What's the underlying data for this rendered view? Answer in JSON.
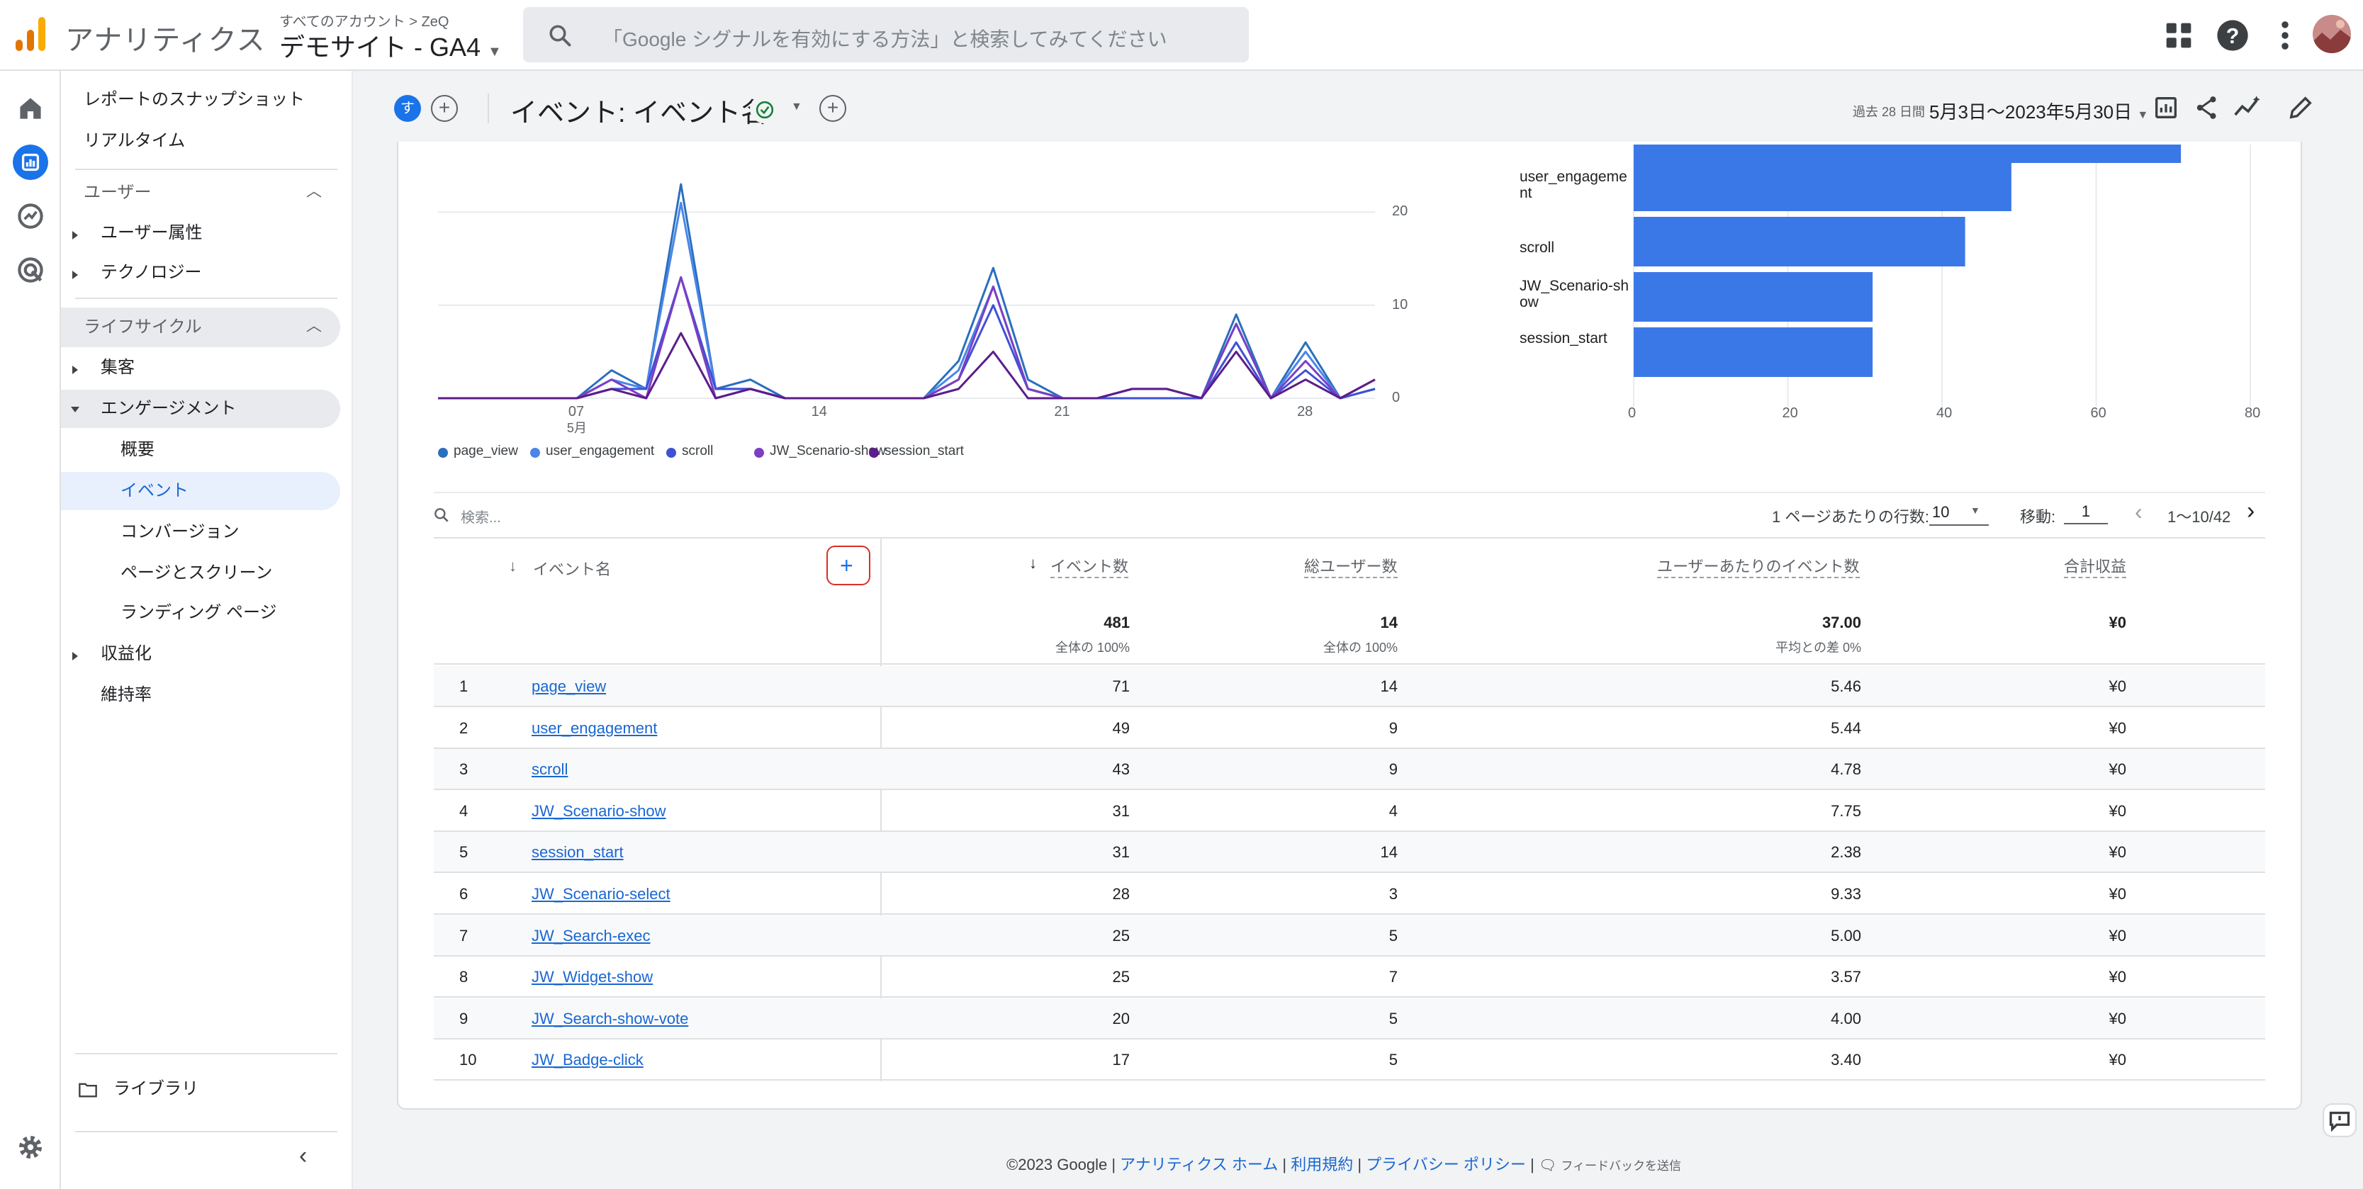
{
  "topbar": {
    "app_name": "アナリティクス",
    "breadcrumb": "すべてのアカウント > ZeQ",
    "property": "デモサイト - GA4",
    "search_placeholder": "「Google シグナルを有効にする方法」と検索してみてください"
  },
  "nav": {
    "snapshot": "レポートのスナップショット",
    "realtime": "リアルタイム",
    "user_section": "ユーザー",
    "user_attr": "ユーザー属性",
    "technology": "テクノロジー",
    "lifecycle_section": "ライフサイクル",
    "acquisition": "集客",
    "engagement": "エンゲージメント",
    "overview": "概要",
    "events": "イベント",
    "conversions": "コンバージョン",
    "pages": "ページとスクリーン",
    "landing": "ランディング ページ",
    "monetization": "収益化",
    "retention": "維持率",
    "library": "ライブラリ"
  },
  "header": {
    "avatar_letter": "す",
    "title": "イベント: イベント名",
    "date_label": "過去 28 日間",
    "date_range": "5月3日〜2023年5月30日"
  },
  "line_chart": {
    "x_ticks": [
      {
        "label": "07",
        "sub": "5月"
      },
      {
        "label": "14",
        "sub": ""
      },
      {
        "label": "21",
        "sub": ""
      },
      {
        "label": "28",
        "sub": ""
      }
    ],
    "y_ticks": [
      "20",
      "10",
      "0"
    ],
    "legend": [
      {
        "name": "page_view",
        "color": "#2a6fbd"
      },
      {
        "name": "user_engagement",
        "color": "#4a86e8"
      },
      {
        "name": "scroll",
        "color": "#3f51d6"
      },
      {
        "name": "JW_Scenario-show",
        "color": "#7b3fc4"
      },
      {
        "name": "session_start",
        "color": "#5c1d8a"
      }
    ]
  },
  "chart_data": [
    {
      "type": "line",
      "ylim": [
        0,
        23
      ],
      "x": [
        "5月3日",
        "5月4日",
        "5月5日",
        "5月6日",
        "5月7日",
        "5月8日",
        "5月9日",
        "5月10日",
        "5月11日",
        "5月12日",
        "5月13日",
        "5月14日",
        "5月15日",
        "5月16日",
        "5月17日",
        "5月18日",
        "5月19日",
        "5月20日",
        "5月21日",
        "5月22日",
        "5月23日",
        "5月24日",
        "5月25日",
        "5月26日",
        "5月27日",
        "5月28日",
        "5月29日",
        "5月30日"
      ],
      "series": [
        {
          "name": "page_view",
          "values": [
            0,
            0,
            0,
            0,
            0,
            3,
            1,
            23,
            1,
            2,
            0,
            0,
            0,
            0,
            0,
            4,
            14,
            2,
            0,
            0,
            0,
            0,
            0,
            9,
            0,
            6,
            0,
            1
          ]
        },
        {
          "name": "user_engagement",
          "values": [
            0,
            0,
            0,
            0,
            0,
            2,
            1,
            21,
            1,
            1,
            0,
            0,
            0,
            0,
            0,
            3,
            12,
            1,
            0,
            0,
            0,
            0,
            0,
            8,
            0,
            5,
            0,
            1
          ]
        },
        {
          "name": "scroll",
          "values": [
            0,
            0,
            0,
            0,
            0,
            1,
            1,
            13,
            1,
            1,
            0,
            0,
            0,
            0,
            0,
            2,
            10,
            1,
            0,
            0,
            0,
            0,
            0,
            6,
            0,
            3,
            0,
            1
          ]
        },
        {
          "name": "JW_Scenario-show",
          "values": [
            0,
            0,
            0,
            0,
            0,
            2,
            0,
            13,
            0,
            1,
            0,
            0,
            0,
            0,
            0,
            2,
            12,
            1,
            0,
            0,
            1,
            1,
            0,
            8,
            0,
            4,
            0,
            2
          ]
        },
        {
          "name": "session_start",
          "values": [
            0,
            0,
            0,
            0,
            0,
            1,
            0,
            7,
            0,
            1,
            0,
            0,
            0,
            0,
            0,
            1,
            5,
            0,
            0,
            0,
            1,
            1,
            0,
            5,
            0,
            2,
            0,
            2
          ]
        }
      ]
    },
    {
      "type": "bar",
      "categories": [
        "page_view",
        "user_engagement",
        "scroll",
        "JW_Scenario-show",
        "session_start"
      ],
      "values": [
        71,
        49,
        43,
        31,
        31
      ],
      "xlim": [
        0,
        80
      ],
      "x_ticks": [
        "0",
        "20",
        "40",
        "60",
        "80"
      ]
    }
  ],
  "bar_labels": [
    {
      "line1": "user_engageme",
      "line2": "nt"
    },
    {
      "line1": "scroll",
      "line2": ""
    },
    {
      "line1": "JW_Scenario-sh",
      "line2": "ow"
    },
    {
      "line1": "session_start",
      "line2": ""
    }
  ],
  "table_controls": {
    "search_placeholder": "検索...",
    "rows_per_page_label": "1 ページあたりの行数:",
    "rows_per_page": "10",
    "goto_label": "移動:",
    "goto_value": "1",
    "page_info": "1〜10/42"
  },
  "table": {
    "headers": {
      "name": "イベント名",
      "count": "イベント数",
      "users": "総ユーザー数",
      "per_user": "ユーザーあたりのイベント数",
      "revenue": "合計収益"
    },
    "totals": {
      "count": "481",
      "count_sub": "全体の 100%",
      "users": "14",
      "users_sub": "全体の 100%",
      "per_user": "37.00",
      "per_user_sub": "平均との差 0%",
      "revenue": "¥0"
    },
    "rows": [
      {
        "idx": "1",
        "name": "page_view",
        "count": "71",
        "users": "14",
        "per_user": "5.46",
        "revenue": "¥0"
      },
      {
        "idx": "2",
        "name": "user_engagement",
        "count": "49",
        "users": "9",
        "per_user": "5.44",
        "revenue": "¥0"
      },
      {
        "idx": "3",
        "name": "scroll",
        "count": "43",
        "users": "9",
        "per_user": "4.78",
        "revenue": "¥0"
      },
      {
        "idx": "4",
        "name": "JW_Scenario-show",
        "count": "31",
        "users": "4",
        "per_user": "7.75",
        "revenue": "¥0"
      },
      {
        "idx": "5",
        "name": "session_start",
        "count": "31",
        "users": "14",
        "per_user": "2.38",
        "revenue": "¥0"
      },
      {
        "idx": "6",
        "name": "JW_Scenario-select",
        "count": "28",
        "users": "3",
        "per_user": "9.33",
        "revenue": "¥0"
      },
      {
        "idx": "7",
        "name": "JW_Search-exec",
        "count": "25",
        "users": "5",
        "per_user": "5.00",
        "revenue": "¥0"
      },
      {
        "idx": "8",
        "name": "JW_Widget-show",
        "count": "25",
        "users": "7",
        "per_user": "3.57",
        "revenue": "¥0"
      },
      {
        "idx": "9",
        "name": "JW_Search-show-vote",
        "count": "20",
        "users": "5",
        "per_user": "4.00",
        "revenue": "¥0"
      },
      {
        "idx": "10",
        "name": "JW_Badge-click",
        "count": "17",
        "users": "5",
        "per_user": "3.40",
        "revenue": "¥0"
      }
    ]
  },
  "footer": {
    "copyright": "©2023 Google |",
    "home": "アナリティクス ホーム",
    "sep1": "|",
    "terms": "利用規約",
    "sep2": "|",
    "privacy": "プライバシー ポリシー",
    "sep3": "|",
    "feedback": "フィードバックを送信"
  },
  "colors": {
    "accent": "#1a73e8",
    "bar": "#3b78e7",
    "highlight_red": "#d93025"
  }
}
